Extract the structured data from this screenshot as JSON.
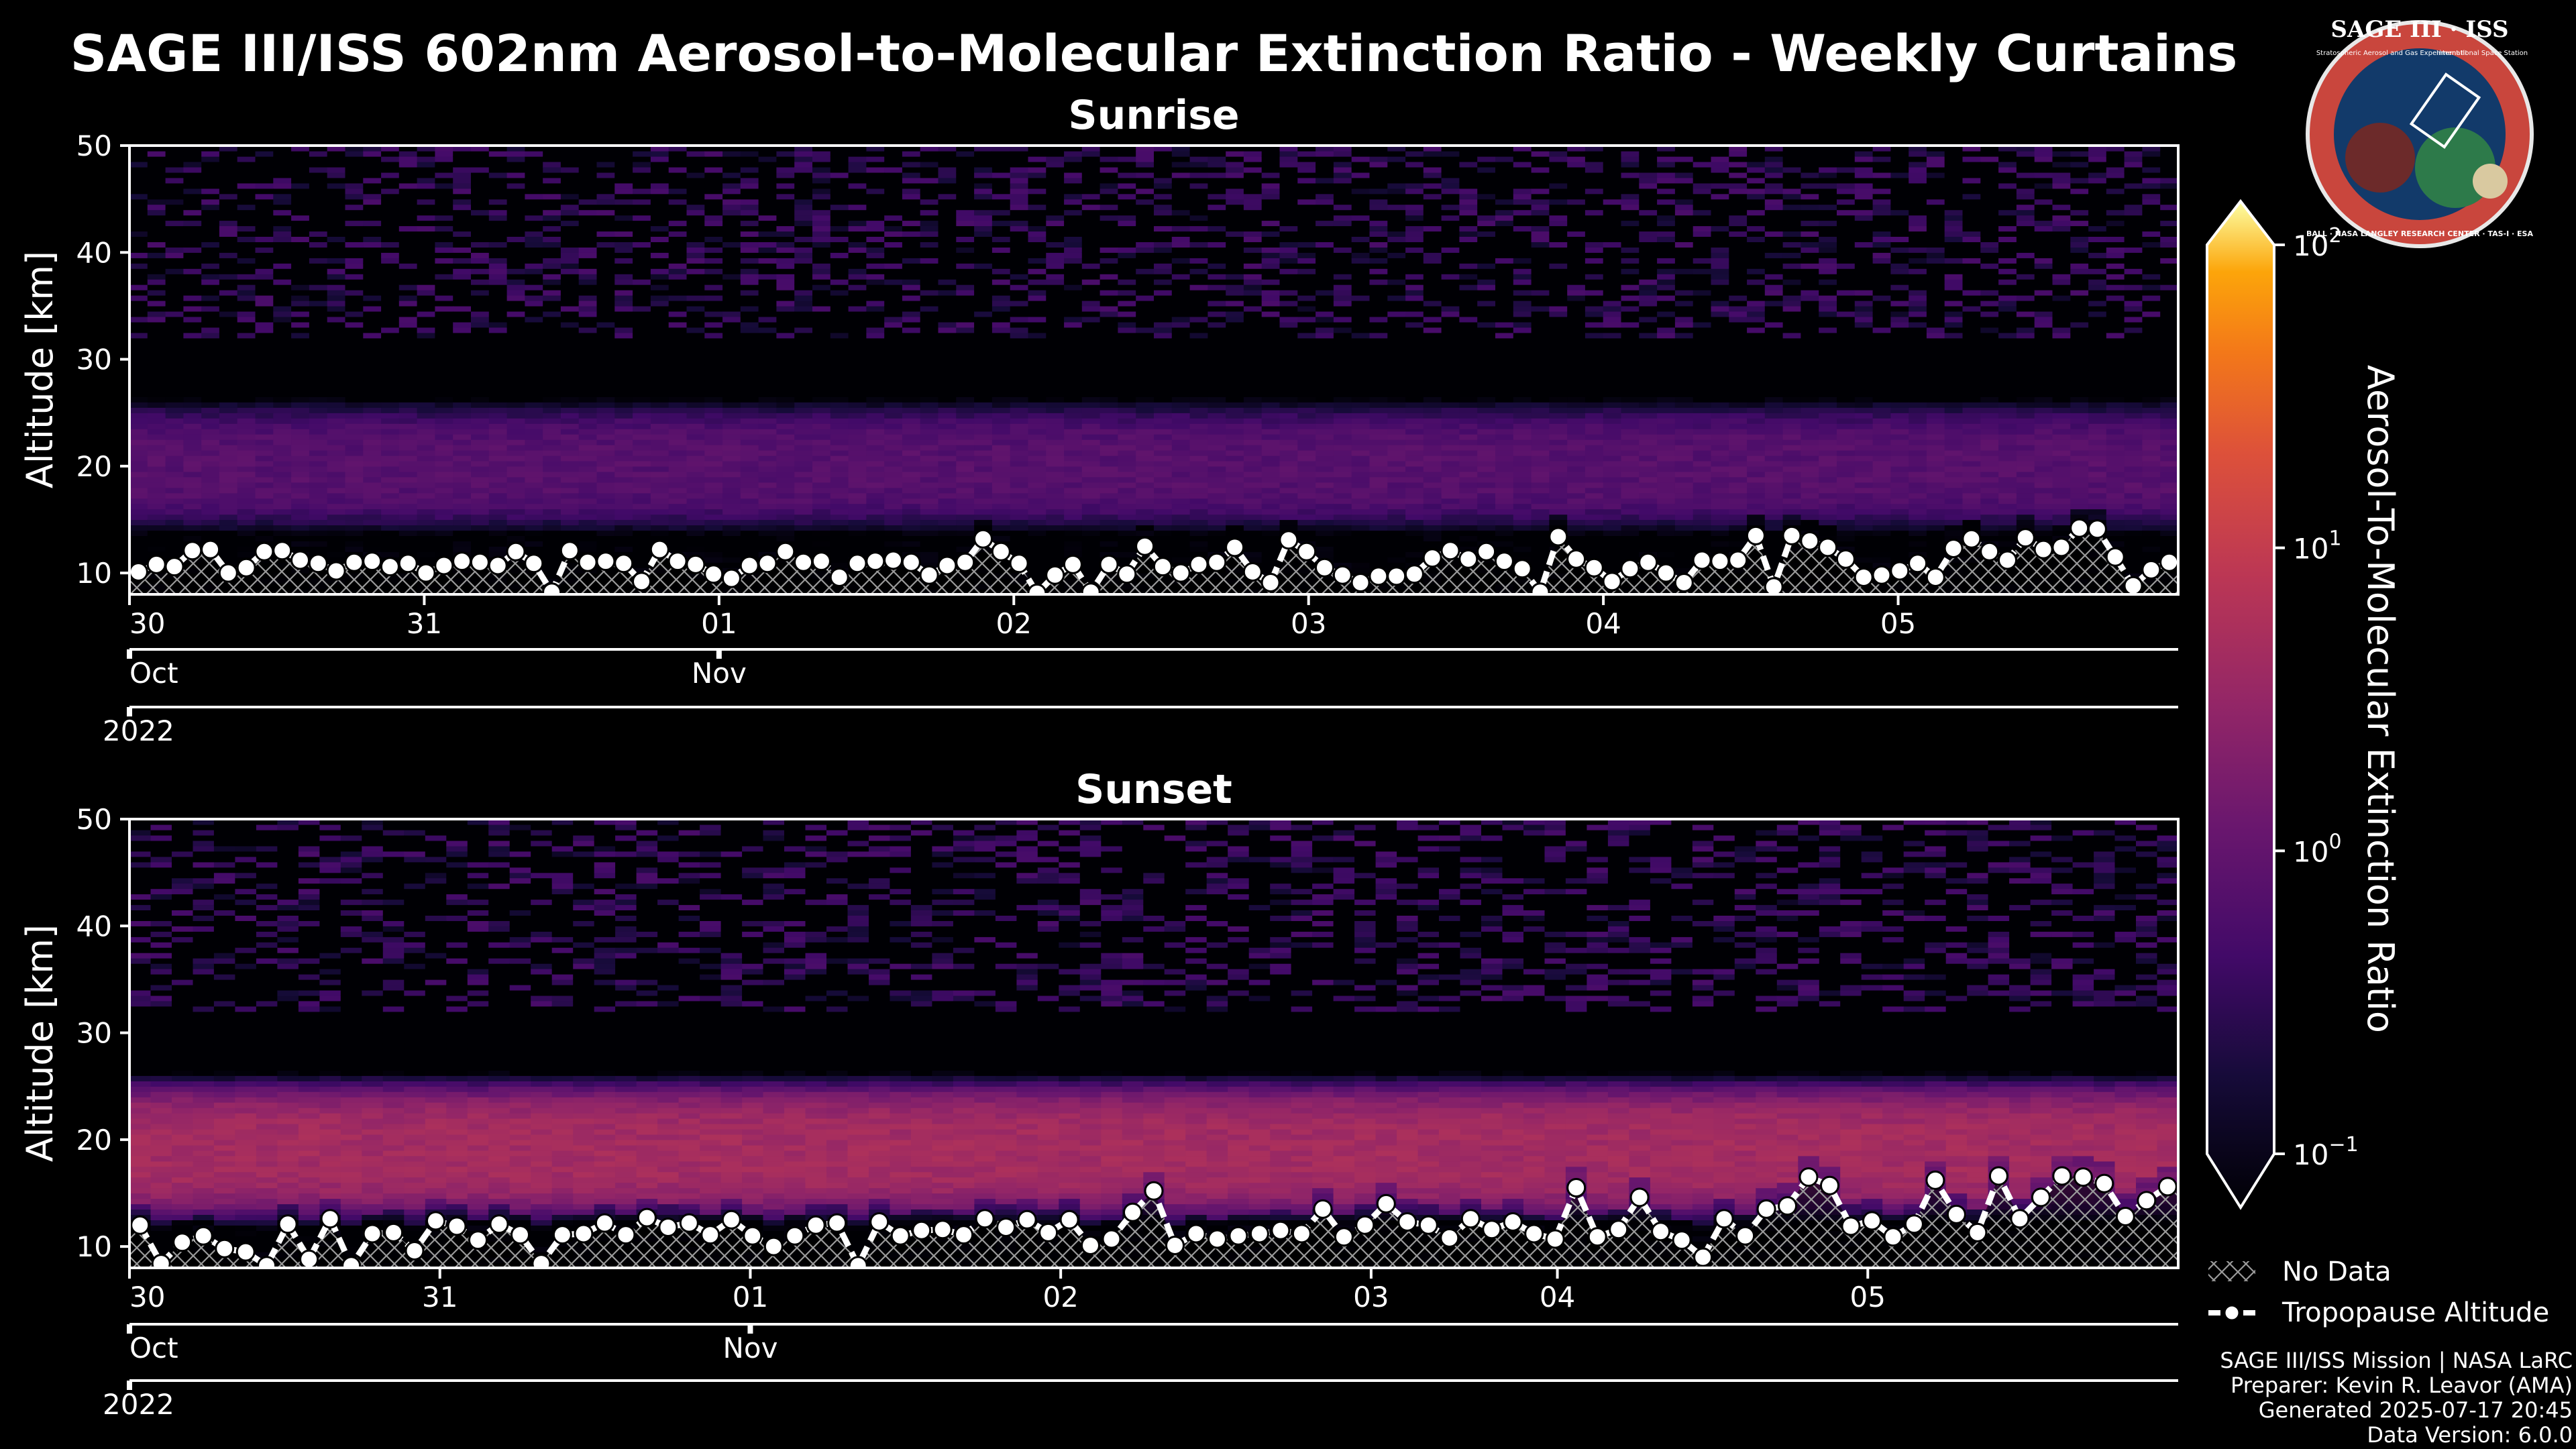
{
  "figure_title": "SAGE III/ISS 602nm Aerosol-to-Molecular Extinction Ratio - Weekly Curtains",
  "logo": {
    "title": "SAGE III · ISS",
    "subtitle": "Stratospheric Aerosol and Gas Experiment III",
    "right_text": "International Space Station",
    "ring_text": "BALL · NASA LANGLEY RESEARCH CENTER · TAS-I · ESA"
  },
  "colors": {
    "background": "#000000",
    "text": "#ffffff",
    "footer": "#9a9a9a",
    "hatch": "#aaaaaa",
    "colormap": "inferno"
  },
  "chart_data": [
    {
      "type": "heatmap",
      "title": "Sunrise",
      "ylabel": "Altitude [km]",
      "ylim": [
        8,
        50
      ],
      "yticks": [
        10,
        20,
        30,
        40,
        50
      ],
      "x_range_days": [
        0,
        6.95
      ],
      "xticks": [
        {
          "label": "30",
          "day": 0.0
        },
        {
          "label": "31",
          "day": 1.0
        },
        {
          "label": "01",
          "day": 2.0
        },
        {
          "label": "02",
          "day": 3.0
        },
        {
          "label": "03",
          "day": 4.0
        },
        {
          "label": "04",
          "day": 5.0
        },
        {
          "label": "05",
          "day": 6.0
        }
      ],
      "month_ticks": [
        {
          "label": "Oct",
          "day": 0.0
        },
        {
          "label": "Nov",
          "day": 2.0
        }
      ],
      "year_tick": {
        "label": "2022",
        "day": 0.0
      },
      "layer_center_km": 20,
      "layer_peak_ratio": 0.9,
      "tropopause_km": [
        10.1,
        10.8,
        10.6,
        12.1,
        12.2,
        10.0,
        10.5,
        12.0,
        12.1,
        11.2,
        10.9,
        10.2,
        11.0,
        11.1,
        10.6,
        10.9,
        10.0,
        10.7,
        11.1,
        11.0,
        10.7,
        12.0,
        10.9,
        8.2,
        12.1,
        11.0,
        11.1,
        10.9,
        9.2,
        12.2,
        11.1,
        10.8,
        9.9,
        9.5,
        10.7,
        10.9,
        12.0,
        11.0,
        11.1,
        9.6,
        10.9,
        11.1,
        11.2,
        11.0,
        9.8,
        10.7,
        11.0,
        13.2,
        12.0,
        10.9,
        8.1,
        9.8,
        10.8,
        8.2,
        10.8,
        9.9,
        12.5,
        10.6,
        10.0,
        10.8,
        11.0,
        12.4,
        10.1,
        9.1,
        13.1,
        12.0,
        10.5,
        9.8,
        9.1,
        9.7,
        9.7,
        9.9,
        11.4,
        12.1,
        11.3,
        12.0,
        11.1,
        10.4,
        8.2,
        13.4,
        11.3,
        10.5,
        9.2,
        10.4,
        11.0,
        10.0,
        9.1,
        11.2,
        11.1,
        11.2,
        13.5,
        8.7,
        13.5,
        13.0,
        12.4,
        11.3,
        9.6,
        9.8,
        10.2,
        10.9,
        9.6,
        12.3,
        13.2,
        12.0,
        11.2,
        13.3,
        12.2,
        12.4,
        14.2,
        14.1,
        11.5,
        8.8,
        10.3,
        11.0
      ]
    },
    {
      "type": "heatmap",
      "title": "Sunset",
      "ylabel": "Altitude [km]",
      "ylim": [
        8,
        50
      ],
      "yticks": [
        10,
        20,
        30,
        40,
        50
      ],
      "x_range_days": [
        0,
        6.6
      ],
      "xticks": [
        {
          "label": "30",
          "day": 0.0
        },
        {
          "label": "31",
          "day": 1.0
        },
        {
          "label": "01",
          "day": 2.0
        },
        {
          "label": "02",
          "day": 3.0
        },
        {
          "label": "03",
          "day": 4.0
        },
        {
          "label": "04",
          "day": 4.6
        },
        {
          "label": "05",
          "day": 5.6
        }
      ],
      "month_ticks": [
        {
          "label": "Oct",
          "day": 0.0
        },
        {
          "label": "Nov",
          "day": 2.0
        }
      ],
      "year_tick": {
        "label": "2022",
        "day": 0.0
      },
      "layer_center_km": 19,
      "layer_peak_ratio": 4.5,
      "tropopause_km": [
        12.0,
        8.4,
        10.4,
        11.0,
        9.8,
        9.5,
        8.2,
        12.1,
        8.8,
        12.6,
        8.2,
        11.2,
        11.3,
        9.6,
        12.4,
        11.9,
        10.6,
        12.1,
        11.1,
        8.4,
        11.1,
        11.2,
        12.2,
        11.1,
        12.7,
        11.8,
        12.2,
        11.1,
        12.5,
        11.0,
        10.0,
        11.0,
        12.0,
        12.2,
        8.2,
        12.3,
        11.0,
        11.5,
        11.6,
        11.1,
        12.6,
        11.8,
        12.5,
        11.3,
        12.5,
        10.1,
        10.7,
        13.2,
        15.2,
        10.1,
        11.2,
        10.7,
        11.0,
        11.2,
        11.5,
        11.2,
        13.5,
        10.9,
        12.0,
        14.0,
        12.3,
        12.0,
        10.8,
        12.6,
        11.6,
        12.3,
        11.2,
        10.7,
        15.5,
        10.9,
        11.6,
        14.6,
        11.4,
        10.6,
        9.0,
        12.6,
        11.0,
        13.5,
        13.8,
        16.5,
        15.7,
        11.9,
        12.4,
        10.9,
        12.1,
        16.2,
        13.0,
        11.3,
        16.6,
        12.6,
        14.6,
        16.6,
        16.5,
        15.9,
        12.8,
        14.3,
        15.6
      ]
    }
  ],
  "colorbar": {
    "label": "Aerosol-To-Molecular Extinction Ratio",
    "scale": "log",
    "range": [
      0.1,
      100
    ],
    "ticks": [
      {
        "base": "10",
        "exp": "2",
        "value": 100
      },
      {
        "base": "10",
        "exp": "1",
        "value": 10
      },
      {
        "base": "10",
        "exp": "0",
        "value": 1
      },
      {
        "base": "10",
        "exp": "−1",
        "value": 0.1
      }
    ]
  },
  "legend": {
    "no_data": "No Data",
    "tropopause": "Tropopause Altitude"
  },
  "footer": {
    "line1": "SAGE III/ISS Mission | NASA LaRC",
    "line2": "Preparer: Kevin R. Leavor (AMA)",
    "line3": "Generated 2025-07-17 20:45",
    "line4": "Data Version: 6.0.0"
  }
}
